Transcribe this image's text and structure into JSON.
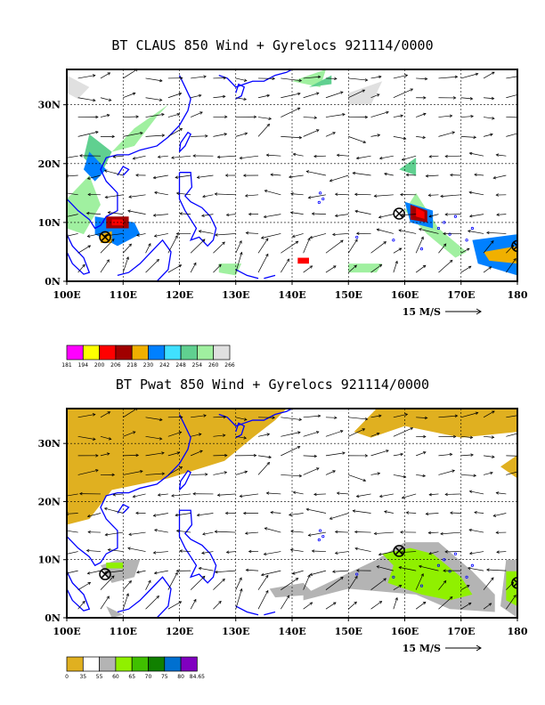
{
  "panels": [
    {
      "title": "BT CLAUS 850 Wind + Gyrelocs 921114/0000",
      "colorbar": {
        "labels": [
          "181",
          "194",
          "200",
          "206",
          "218",
          "230",
          "242",
          "248",
          "254",
          "260",
          "266"
        ],
        "colors": [
          "#ff00ff",
          "#ffff00",
          "#ff0000",
          "#a00000",
          "#f0b000",
          "#0080ff",
          "#40e0ff",
          "#60d090",
          "#a0f0a0",
          "#e0e0e0"
        ]
      }
    },
    {
      "title": "BT Pwat 850 Wind + Gyrelocs 921114/0000",
      "colorbar": {
        "labels": [
          "0",
          "35",
          "55",
          "60",
          "65",
          "70",
          "75",
          "80",
          "84.65"
        ],
        "colors": [
          "#e0b020",
          "#ffffff",
          "#b4b4b4",
          "#90f000",
          "#40c000",
          "#108000",
          "#0070d0",
          "#8000c0"
        ]
      }
    }
  ],
  "axes": {
    "lon_labels": [
      "100E",
      "110E",
      "120E",
      "130E",
      "140E",
      "150E",
      "160E",
      "170E",
      "180"
    ],
    "lat_labels": [
      "0N",
      "10N",
      "20N",
      "30N"
    ],
    "lon_range": [
      100,
      180
    ],
    "lat_range": [
      0,
      36
    ]
  },
  "vector_key": "15 M/S",
  "gyre_locations": [
    {
      "lon": 106.8,
      "lat": 7.5,
      "panel": "both"
    },
    {
      "lon": 159.0,
      "lat": 11.5,
      "panel": "both"
    },
    {
      "lon": 180.0,
      "lat": 6.0,
      "panel": "both"
    }
  ]
}
